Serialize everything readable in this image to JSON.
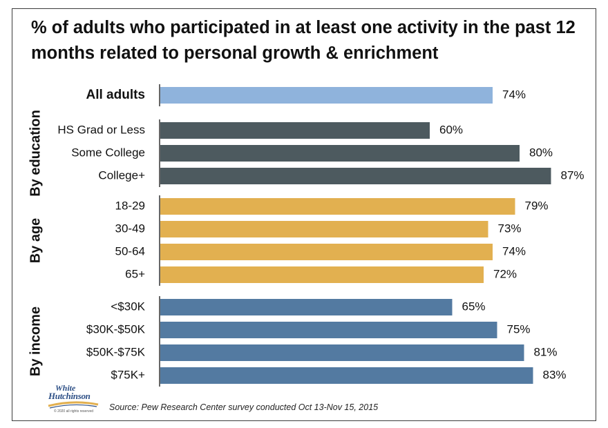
{
  "chart_data": {
    "type": "bar",
    "orientation": "horizontal",
    "title": "% of adults who participated in at least one activity in the past 12 months related to personal growth & enrichment",
    "xlim": [
      0,
      100
    ],
    "value_suffix": "%",
    "grid": false,
    "groups": [
      {
        "label": "",
        "color": "#8fb3dc",
        "bold": true,
        "categories": [
          "All adults"
        ],
        "values": [
          74
        ]
      },
      {
        "label": "By education",
        "color": "#4d5a5f",
        "bold": false,
        "categories": [
          "HS Grad or Less",
          "Some College",
          "College+"
        ],
        "values": [
          60,
          80,
          87
        ]
      },
      {
        "label": "By age",
        "color": "#e2b050",
        "bold": false,
        "categories": [
          "18-29",
          "30-49",
          "50-64",
          "65+"
        ],
        "values": [
          79,
          73,
          74,
          72
        ]
      },
      {
        "label": "By income",
        "color": "#537aa1",
        "bold": false,
        "categories": [
          "<$30K",
          "$30K-$50K",
          "$50K-$75K",
          "$75K+"
        ],
        "values": [
          65,
          75,
          81,
          83
        ]
      }
    ]
  },
  "source": "Source: Pew Research Center survey conducted Oct 13-Nov 15, 2015",
  "logo": {
    "line1": "White",
    "line2": "Hutchinson",
    "line3": "© 2020 all rights reserved"
  }
}
